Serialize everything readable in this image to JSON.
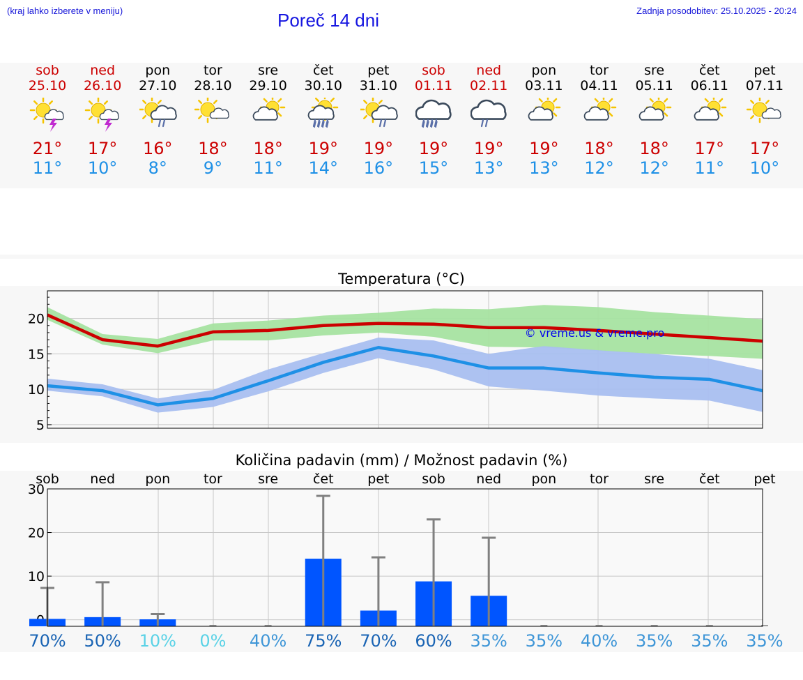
{
  "header": {
    "hint": "(kraj lahko izberete v meniju)",
    "title": "Poreč 14 dni",
    "updated": "Zadnja posodobitev: 25.10.2025 - 20:24"
  },
  "days": [
    {
      "name": "sob",
      "date": "25.10",
      "weekend": true,
      "icon": "sun-cloud-thunder",
      "max": "21°",
      "min": "11°"
    },
    {
      "name": "ned",
      "date": "26.10",
      "weekend": true,
      "icon": "sun-cloud-thunder",
      "max": "17°",
      "min": "10°"
    },
    {
      "name": "pon",
      "date": "27.10",
      "weekend": false,
      "icon": "sun-cloud-rain",
      "max": "16°",
      "min": "8°"
    },
    {
      "name": "tor",
      "date": "28.10",
      "weekend": false,
      "icon": "sun-cloud",
      "max": "18°",
      "min": "9°"
    },
    {
      "name": "sre",
      "date": "29.10",
      "weekend": false,
      "icon": "cloud-sun",
      "max": "18°",
      "min": "11°"
    },
    {
      "name": "čet",
      "date": "30.10",
      "weekend": false,
      "icon": "sun-cloud-heavy-rain",
      "max": "19°",
      "min": "14°"
    },
    {
      "name": "pet",
      "date": "31.10",
      "weekend": false,
      "icon": "sun-cloud-rain",
      "max": "19°",
      "min": "16°"
    },
    {
      "name": "sob",
      "date": "01.11",
      "weekend": true,
      "icon": "cloud-heavy-rain",
      "max": "19°",
      "min": "15°"
    },
    {
      "name": "ned",
      "date": "02.11",
      "weekend": true,
      "icon": "cloud-rain",
      "max": "19°",
      "min": "13°"
    },
    {
      "name": "pon",
      "date": "03.11",
      "weekend": false,
      "icon": "cloud-sun",
      "max": "19°",
      "min": "13°"
    },
    {
      "name": "tor",
      "date": "04.11",
      "weekend": false,
      "icon": "cloud-sun",
      "max": "18°",
      "min": "12°"
    },
    {
      "name": "sre",
      "date": "05.11",
      "weekend": false,
      "icon": "cloud-sun",
      "max": "18°",
      "min": "12°"
    },
    {
      "name": "čet",
      "date": "06.11",
      "weekend": false,
      "icon": "cloud-sun",
      "max": "17°",
      "min": "11°"
    },
    {
      "name": "pet",
      "date": "07.11",
      "weekend": false,
      "icon": "sun-cloud",
      "max": "17°",
      "min": "10°"
    }
  ],
  "colors": {
    "max": "#cc0000",
    "min": "#1e90e6",
    "max_band": "#a6e3a1",
    "min_band": "#a9bff0",
    "bar": "#0055ff",
    "whisker": "#808080"
  },
  "chart_data": [
    {
      "type": "line",
      "title": "Temperatura (°C)",
      "watermark": "© vreme.us & vreme.pro",
      "ylim": [
        4.5,
        23.9
      ],
      "yticks": [
        5,
        10,
        15,
        20
      ],
      "grid": true,
      "series": [
        {
          "role": "max",
          "values": [
            20.5,
            17.0,
            16.1,
            18.1,
            18.3,
            19.0,
            19.3,
            19.2,
            18.7,
            18.7,
            18.3,
            17.8,
            17.3,
            16.8
          ]
        },
        {
          "role": "min",
          "values": [
            10.5,
            9.8,
            7.8,
            8.7,
            11.2,
            13.8,
            15.9,
            14.7,
            13.0,
            13.0,
            12.3,
            11.7,
            11.4,
            9.8
          ]
        }
      ],
      "bands": [
        {
          "role": "max",
          "low": [
            19.8,
            16.3,
            15.1,
            16.9,
            16.9,
            17.6,
            18.0,
            17.4,
            16.0,
            15.9,
            15.4,
            15.0,
            14.7,
            14.3
          ],
          "high": [
            21.6,
            17.8,
            17.1,
            19.3,
            19.7,
            20.4,
            20.8,
            21.4,
            21.3,
            21.9,
            21.6,
            20.9,
            20.4,
            19.9
          ]
        },
        {
          "role": "min",
          "low": [
            9.8,
            9.0,
            6.7,
            7.5,
            9.7,
            12.3,
            14.4,
            12.8,
            10.4,
            9.8,
            9.1,
            8.7,
            8.4,
            6.8
          ],
          "high": [
            11.5,
            10.7,
            8.7,
            9.9,
            12.8,
            15.1,
            17.3,
            16.9,
            15.0,
            16.1,
            15.5,
            15.0,
            14.3,
            12.7
          ]
        }
      ]
    },
    {
      "type": "bar",
      "title": "Količina padavin (mm) / Možnost padavin (%)",
      "categories": [
        "sob",
        "ned",
        "pon",
        "tor",
        "sre",
        "čet",
        "pet",
        "sob",
        "ned",
        "pon",
        "tor",
        "sre",
        "čet",
        "pet"
      ],
      "ylim": [
        -1.5,
        30
      ],
      "yticks": [
        0,
        10,
        20,
        30
      ],
      "grid": true,
      "values": [
        0.2,
        0.6,
        0.1,
        0,
        0,
        14.0,
        2.1,
        8.8,
        5.5,
        0,
        0,
        0,
        0,
        0
      ],
      "max_values": [
        7.3,
        8.6,
        1.3,
        0,
        0,
        28.4,
        14.3,
        23.0,
        18.8,
        0,
        0,
        0,
        0,
        0
      ],
      "probability": [
        "70%",
        "50%",
        "10%",
        "0%",
        "40%",
        "75%",
        "70%",
        "60%",
        "35%",
        "35%",
        "40%",
        "35%",
        "35%",
        "35%"
      ],
      "probability_colors": [
        "#1a64b4",
        "#1a64b4",
        "#5ad2e6",
        "#5ad2e6",
        "#3f96d7",
        "#1a64b4",
        "#1a64b4",
        "#1a64b4",
        "#3f96d7",
        "#3f96d7",
        "#3f96d7",
        "#3f96d7",
        "#3f96d7",
        "#3f96d7"
      ]
    }
  ]
}
